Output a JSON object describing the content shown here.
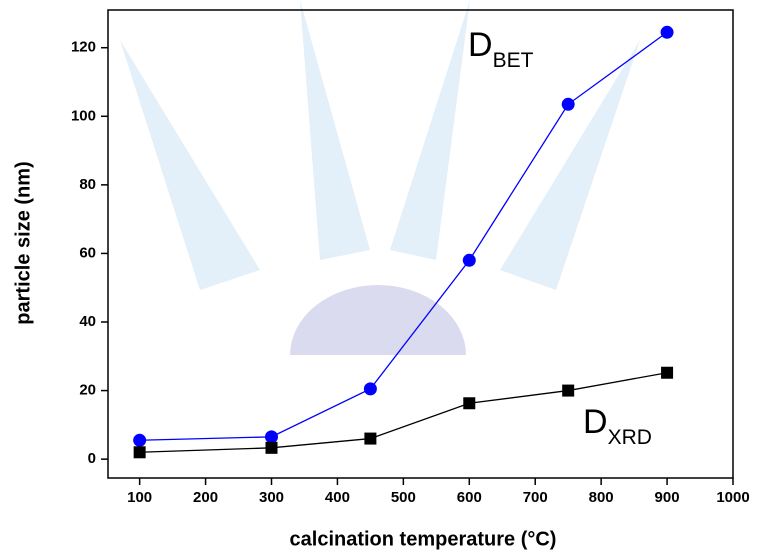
{
  "chart_data": {
    "type": "line",
    "x_label": "calcination temperature (°C)",
    "y_label": "particle size (nm)",
    "x": [
      100,
      300,
      450,
      600,
      750,
      900
    ],
    "series": [
      {
        "color": "#0000ff",
        "marker": "circle",
        "values": [
          5.5,
          6.5,
          20.5,
          58,
          103.5,
          124.5
        ]
      },
      {
        "color": "#000000",
        "marker": "square",
        "values": [
          2,
          3.3,
          6,
          16.3,
          20,
          25.2
        ]
      }
    ],
    "annotations": [
      {
        "text": "D",
        "subscript": "BET"
      },
      {
        "text": "D",
        "subscript": "XRD"
      }
    ],
    "xlim": [
      52,
      1000
    ],
    "xticks": [
      100,
      200,
      300,
      400,
      500,
      600,
      700,
      800,
      900,
      1000
    ],
    "ylim": [
      -5.5,
      131
    ],
    "yticks": [
      0,
      20,
      40,
      60,
      80,
      100,
      120
    ],
    "grid": false
  }
}
